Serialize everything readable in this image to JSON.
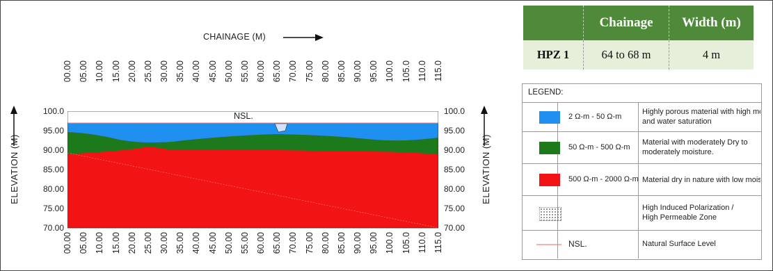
{
  "chainage_title": "CHAINAGE (M)",
  "elevation_label": "ELEVATION (M)",
  "nsl_label": "NSL.",
  "chainage_ticks": [
    "00.00",
    "05.00",
    "10.00",
    "15.00",
    "20.00",
    "25.00",
    "30.00",
    "35.00",
    "40.00",
    "45.00",
    "50.00",
    "55.00",
    "60.00",
    "65.00",
    "70.00",
    "75.00",
    "80.00",
    "85.00",
    "90.00",
    "95.00",
    "100.0",
    "105.0",
    "110.0",
    "115.0"
  ],
  "elevation_ticks": [
    "100.0",
    "95.00",
    "90.00",
    "85.00",
    "80.00",
    "75.00",
    "70.00"
  ],
  "summary": {
    "headers": [
      "",
      "Chainage",
      "Width (m)"
    ],
    "row": [
      "HPZ 1",
      "64 to 68 m",
      "4 m"
    ]
  },
  "legend": {
    "title": "LEGEND:",
    "items": [
      {
        "range": "2 Ω-m - 50 Ω-m",
        "desc1": "Highly porous material with high moisture",
        "desc2": "and water saturation",
        "color": "#1f8ff0"
      },
      {
        "range": "50 Ω-m - 500 Ω-m",
        "desc1": "Material with moderately Dry to",
        "desc2": "moderately moisture.",
        "color": "#1c7a1c"
      },
      {
        "range": "500 Ω-m - 2000 Ω-m",
        "desc1": "Material dry in nature with low moisture",
        "desc2": "",
        "color": "#f21414"
      },
      {
        "range": "",
        "desc1": "High Induced Polarization /",
        "desc2": "High Permeable Zone",
        "color": "#dddddd"
      },
      {
        "range": "NSL.",
        "desc1": "Natural Surface Level",
        "desc2": "",
        "color": "#f08080"
      }
    ]
  },
  "colors": {
    "water": "#1f8ff0",
    "moist": "#1c7a1c",
    "dry": "#f21414",
    "nsl": "#f08080"
  }
}
